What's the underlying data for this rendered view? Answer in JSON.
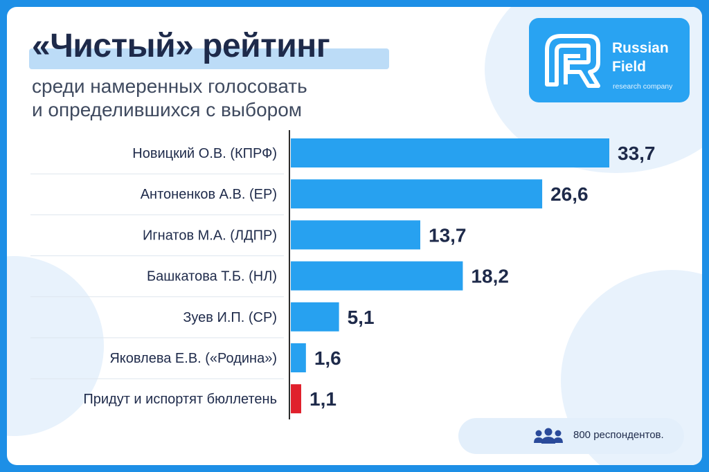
{
  "colors": {
    "frame": "#1d8fe6",
    "bar": "#27a1f0",
    "bar_highlight": "#e0202c",
    "title": "#1e2a4a",
    "logo_bg": "#29a3f2"
  },
  "header": {
    "title": "«Чистый» рейтинг",
    "subtitle_line1": "среди намеренных голосовать",
    "subtitle_line2": "и определившихся с выбором"
  },
  "logo": {
    "name_line1": "Russian",
    "name_line2": "Field",
    "tagline": "research company",
    "icon": "rf-logo-icon"
  },
  "footer": {
    "icon": "people-icon",
    "respondents": "800 респондентов."
  },
  "chart_data": {
    "type": "bar",
    "orientation": "horizontal",
    "categories": [
      "Новицкий О.В. (КПРФ)",
      "Антоненков А.В. (ЕР)",
      "Игнатов М.А. (ЛДПР)",
      "Башкатова Т.Б. (НЛ)",
      "Зуев И.П. (СР)",
      "Яковлева Е.В. («Родина»)",
      "Придут и испортят бюллетень"
    ],
    "values": [
      33.7,
      26.6,
      13.7,
      18.2,
      5.1,
      1.6,
      1.1
    ],
    "value_labels": [
      "33,7",
      "26,6",
      "13,7",
      "18,2",
      "5,1",
      "1,6",
      "1,1"
    ],
    "highlight_index": 6,
    "xlim": [
      0,
      35
    ],
    "grid": false,
    "title": "«Чистый» рейтинг"
  }
}
